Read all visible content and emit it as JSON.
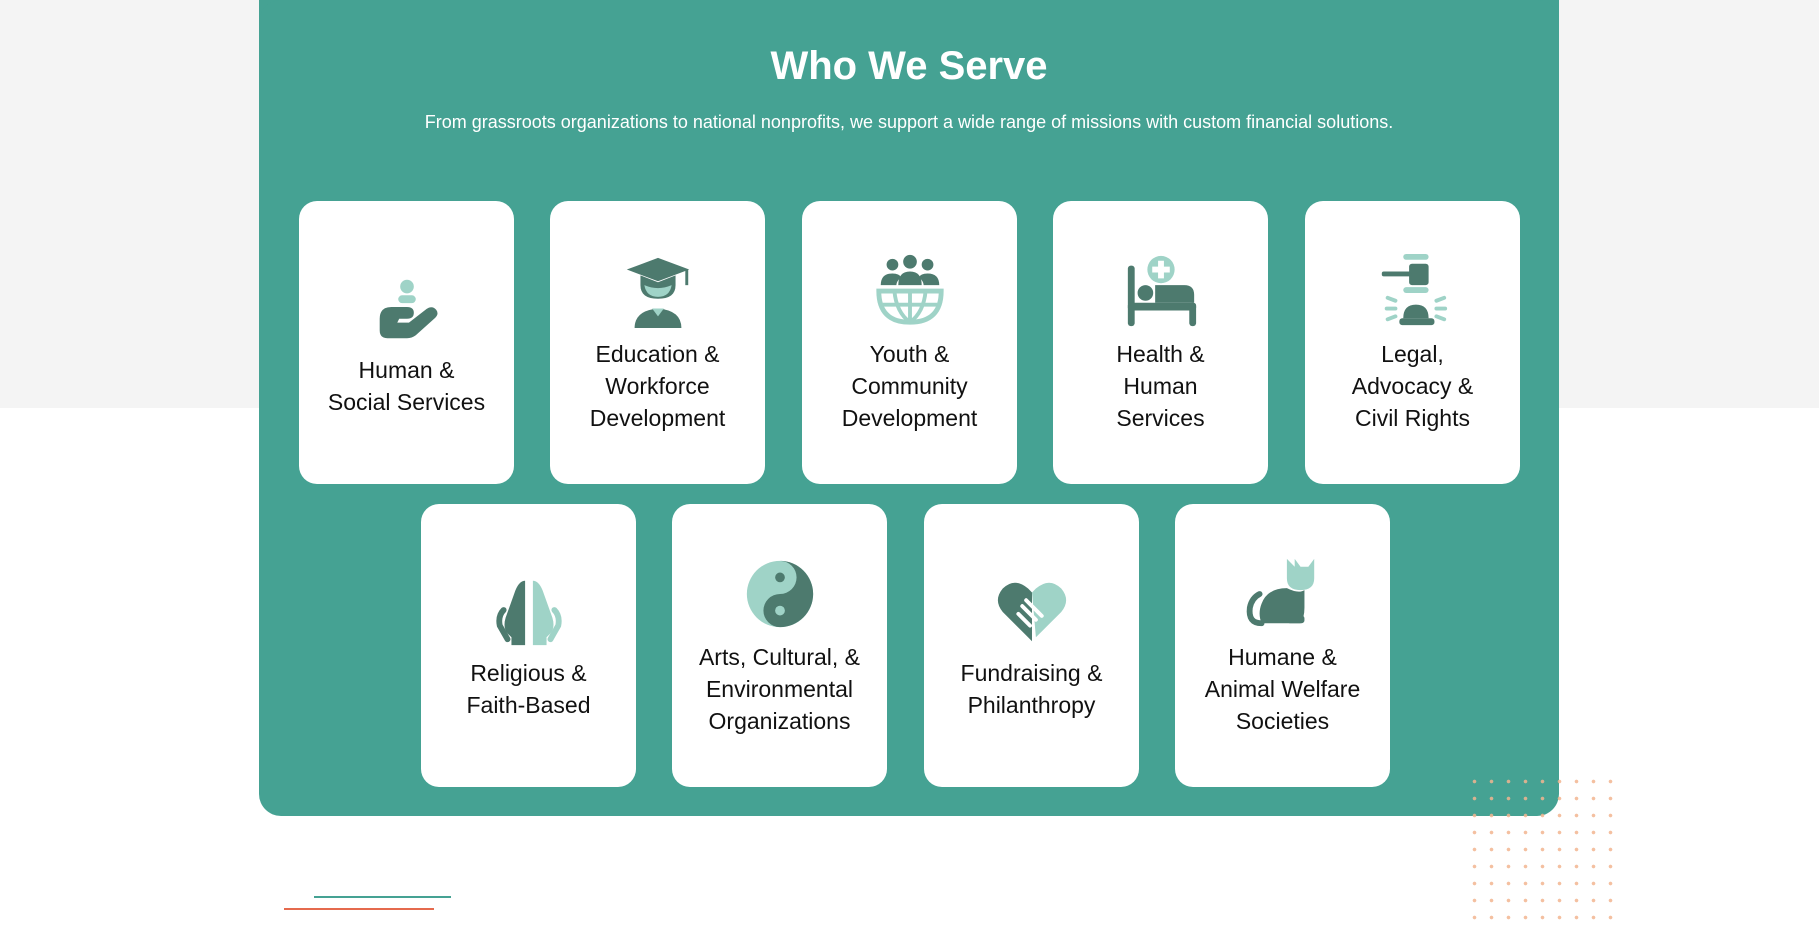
{
  "section": {
    "title": "Who We Serve",
    "subtitle": "From grassroots organizations to national nonprofits, we support a wide range of missions with custom financial solutions."
  },
  "colors": {
    "panel": "#45a293",
    "icon_dark": "#4d7a6e",
    "icon_light": "#9fd3c7",
    "accent_orange": "#e56a4e",
    "dots": "#f2b58f"
  },
  "cards": [
    {
      "label": "Human &\nSocial Services",
      "icon": "hand-with-person-icon"
    },
    {
      "label": "Education &\nWorkforce\nDevelopment",
      "icon": "graduate-icon"
    },
    {
      "label": "Youth &\nCommunity\nDevelopment",
      "icon": "community-globe-icon"
    },
    {
      "label": "Health &\nHuman\nServices",
      "icon": "hospital-bed-icon"
    },
    {
      "label": "Legal,\nAdvocacy &\nCivil Rights",
      "icon": "gavel-icon"
    },
    {
      "label": "Religious &\nFaith-Based",
      "icon": "praying-hands-icon"
    },
    {
      "label": "Arts, Cultural, &\nEnvironmental\nOrganizations",
      "icon": "yin-yang-icon"
    },
    {
      "label": "Fundraising &\nPhilanthropy",
      "icon": "handshake-heart-icon"
    },
    {
      "label": "Humane &\nAnimal Welfare\nSocieties",
      "icon": "cat-icon"
    }
  ]
}
